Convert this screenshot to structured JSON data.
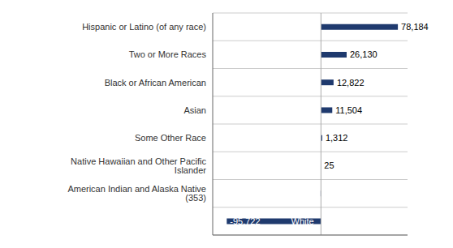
{
  "chart_data": {
    "type": "bar",
    "orientation": "horizontal",
    "categories": [
      null,
      "American Indian and Alaska Native (353)",
      "Native Hawaiian and Other Pacific Islander",
      "Some Other Race",
      "Asian",
      "Black or African American",
      "Two or More Races",
      "Hispanic or Latino (of any race)"
    ],
    "values": [
      -95722,
      -353,
      25,
      1312,
      11504,
      12822,
      26130,
      78184
    ],
    "value_labels": [
      "-95,722",
      null,
      "25",
      "1,312",
      "11,504",
      "12,822",
      "26,130",
      "78,184"
    ],
    "data_labels": true,
    "color": "#1f3a6e",
    "xlim": [
      -110000,
      88000
    ],
    "tick_labels": "y",
    "grid": true,
    "annotations": [
      {
        "text": "White",
        "x": -3000,
        "y": 0
      }
    ]
  }
}
